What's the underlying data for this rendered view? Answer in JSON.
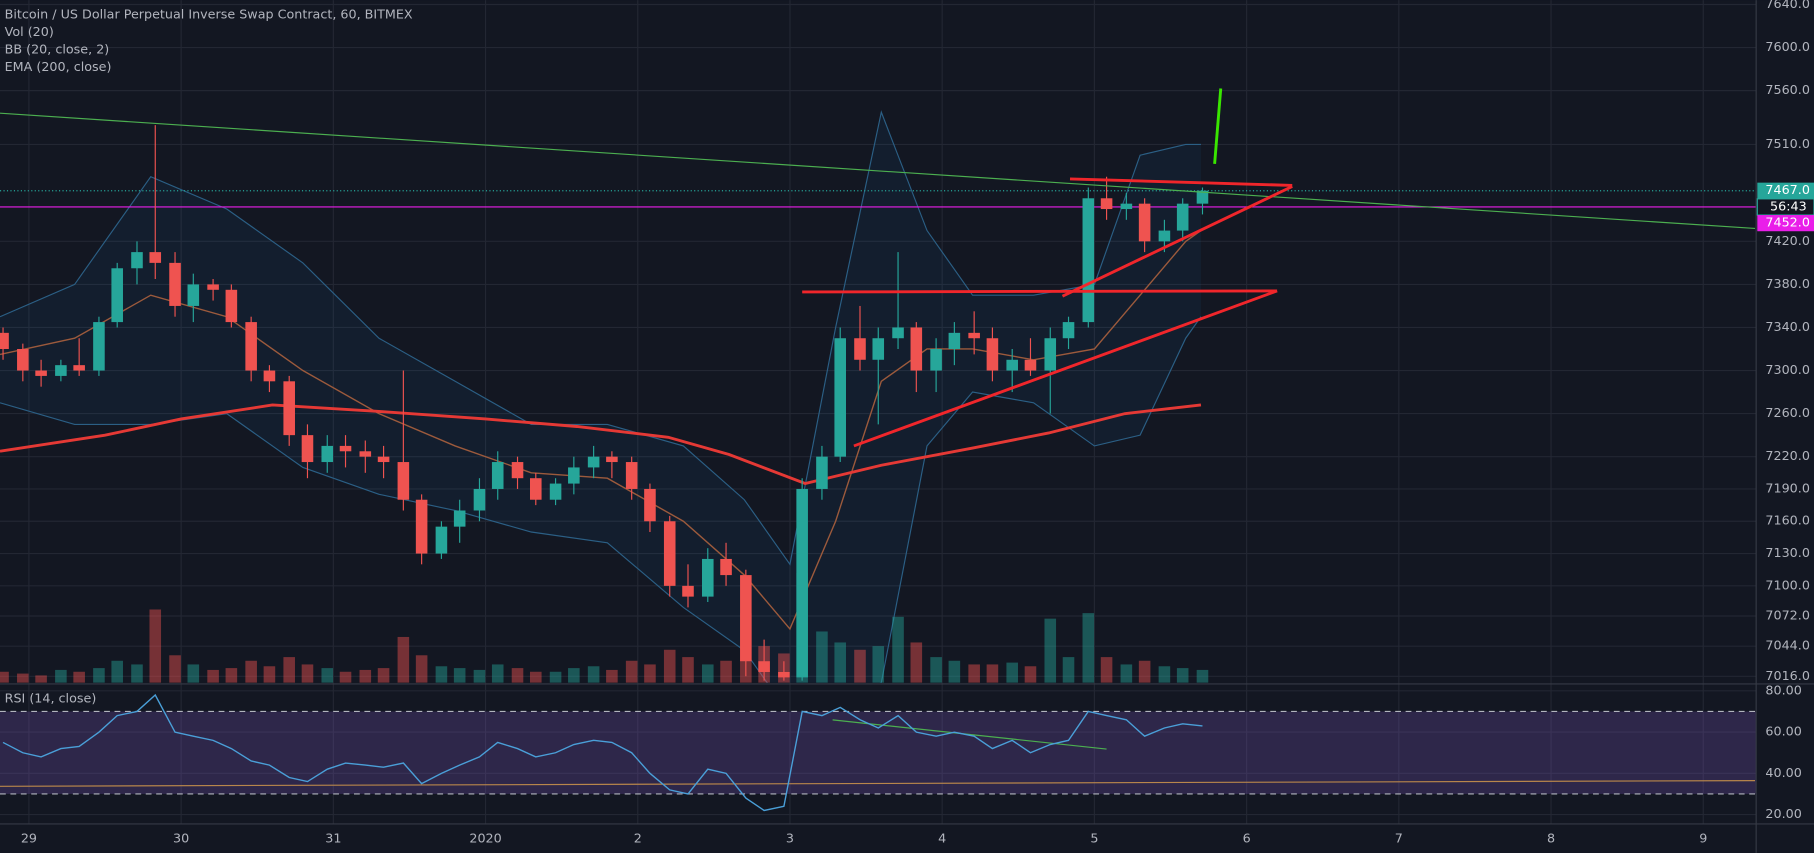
{
  "chart_data": {
    "type": "candlestick",
    "title": "Bitcoin / US Dollar Perpetual Inverse Swap Contract, 60, BITMEX",
    "indicators": [
      "Vol (20)",
      "BB (20, close, 2)",
      "EMA (200, close)"
    ],
    "x": [
      -0.17,
      -0.04,
      0.08,
      0.21,
      0.33,
      0.46,
      0.58,
      0.71,
      0.83,
      0.96,
      1.08,
      1.21,
      1.33,
      1.46,
      1.58,
      1.71,
      1.83,
      1.96,
      2.08,
      2.21,
      2.33,
      2.46,
      2.58,
      2.71,
      2.83,
      2.96,
      3.08,
      3.21,
      3.33,
      3.46,
      3.58,
      3.71,
      3.83,
      3.96,
      4.08,
      4.21,
      4.33,
      4.46,
      4.58,
      4.71,
      4.83,
      4.96,
      5.08,
      5.21,
      5.33,
      5.46,
      5.58,
      5.71,
      5.83,
      5.96,
      6.08,
      6.21,
      6.33,
      6.46,
      6.58,
      6.71,
      6.83,
      6.96,
      7.08,
      7.21,
      7.33,
      7.46,
      7.58,
      7.71
    ],
    "open": [
      7335,
      7320,
      7300,
      7295,
      7305,
      7300,
      7345,
      7395,
      7410,
      7400,
      7360,
      7380,
      7375,
      7345,
      7300,
      7290,
      7240,
      7215,
      7230,
      7225,
      7220,
      7215,
      7180,
      7130,
      7155,
      7170,
      7190,
      7215,
      7200,
      7180,
      7195,
      7210,
      7220,
      7215,
      7190,
      7160,
      7100,
      7090,
      7125,
      7110,
      7030,
      7020,
      7015,
      7190,
      7220,
      7330,
      7310,
      7330,
      7340,
      7300,
      7320,
      7335,
      7330,
      7300,
      7310,
      7300,
      7330,
      7345,
      7460,
      7450,
      7455,
      7420,
      7430,
      7455
    ],
    "high": [
      7340,
      7325,
      7310,
      7310,
      7330,
      7350,
      7400,
      7420,
      7528,
      7410,
      7390,
      7385,
      7380,
      7350,
      7305,
      7295,
      7250,
      7240,
      7240,
      7235,
      7230,
      7300,
      7185,
      7160,
      7180,
      7200,
      7225,
      7220,
      7205,
      7200,
      7220,
      7230,
      7225,
      7220,
      7195,
      7165,
      7120,
      7135,
      7140,
      7115,
      7050,
      7030,
      7200,
      7230,
      7340,
      7360,
      7340,
      7410,
      7345,
      7330,
      7345,
      7355,
      7340,
      7320,
      7330,
      7340,
      7350,
      7470,
      7480,
      7465,
      7460,
      7440,
      7460,
      7470
    ],
    "low": [
      7310,
      7290,
      7285,
      7290,
      7295,
      7295,
      7340,
      7380,
      7385,
      7350,
      7345,
      7365,
      7340,
      7290,
      7280,
      7230,
      7200,
      7205,
      7210,
      7205,
      7200,
      7170,
      7120,
      7125,
      7140,
      7160,
      7180,
      7190,
      7175,
      7175,
      7185,
      7200,
      7200,
      7180,
      7150,
      7090,
      7080,
      7085,
      7100,
      7016,
      7012,
      7012,
      7012,
      7180,
      7215,
      7300,
      7250,
      7320,
      7280,
      7280,
      7305,
      7315,
      7290,
      7280,
      7295,
      7260,
      7320,
      7340,
      7440,
      7440,
      7410,
      7410,
      7420,
      7445
    ],
    "close": [
      7320,
      7300,
      7295,
      7305,
      7300,
      7345,
      7395,
      7410,
      7400,
      7360,
      7380,
      7375,
      7345,
      7300,
      7290,
      7240,
      7215,
      7230,
      7225,
      7220,
      7215,
      7180,
      7130,
      7155,
      7170,
      7190,
      7215,
      7200,
      7180,
      7195,
      7210,
      7220,
      7215,
      7190,
      7160,
      7100,
      7090,
      7125,
      7110,
      7030,
      7020,
      7015,
      7190,
      7220,
      7330,
      7310,
      7330,
      7340,
      7300,
      7320,
      7335,
      7330,
      7300,
      7310,
      7300,
      7330,
      7345,
      7460,
      7450,
      7455,
      7420,
      7430,
      7455,
      7467
    ],
    "volume": [
      6,
      5,
      4,
      7,
      6,
      8,
      12,
      10,
      40,
      15,
      10,
      7,
      8,
      12,
      9,
      14,
      10,
      8,
      6,
      7,
      8,
      25,
      15,
      9,
      8,
      7,
      10,
      8,
      6,
      6,
      8,
      9,
      7,
      12,
      10,
      18,
      14,
      10,
      12,
      38,
      20,
      16,
      60,
      28,
      22,
      18,
      20,
      36,
      22,
      14,
      12,
      10,
      10,
      11,
      9,
      35,
      14,
      38,
      14,
      10,
      12,
      9,
      8,
      7
    ],
    "up_color": "#26a69a",
    "down_color": "#ef5350",
    "xlim": [
      -0.19,
      11.34
    ],
    "xticks": [
      {
        "value": 0,
        "label": "29"
      },
      {
        "value": 1,
        "label": "30"
      },
      {
        "value": 2,
        "label": "31"
      },
      {
        "value": 3,
        "label": "2020"
      },
      {
        "value": 4,
        "label": "2"
      },
      {
        "value": 5,
        "label": "3"
      },
      {
        "value": 6,
        "label": "4"
      },
      {
        "value": 7,
        "label": "5"
      },
      {
        "value": 8,
        "label": "6"
      },
      {
        "value": 9,
        "label": "7"
      },
      {
        "value": 10,
        "label": "8"
      },
      {
        "value": 11,
        "label": "9"
      }
    ],
    "ylim": [
      7010,
      7644
    ],
    "yticks": [
      {
        "value": 7640,
        "label": "7640.0"
      },
      {
        "value": 7600,
        "label": "7600.0"
      },
      {
        "value": 7560,
        "label": "7560.0"
      },
      {
        "value": 7510,
        "label": "7510.0"
      },
      {
        "value": 7420,
        "label": "7420.0"
      },
      {
        "value": 7380,
        "label": "7380.0"
      },
      {
        "value": 7340,
        "label": "7340.0"
      },
      {
        "value": 7300,
        "label": "7300.0"
      },
      {
        "value": 7260,
        "label": "7260.0"
      },
      {
        "value": 7220,
        "label": "7220.0"
      },
      {
        "value": 7190,
        "label": "7190.0"
      },
      {
        "value": 7160,
        "label": "7160.0"
      },
      {
        "value": 7130,
        "label": "7130.0"
      },
      {
        "value": 7100,
        "label": "7100.0"
      },
      {
        "value": 7072,
        "label": "7072.0"
      },
      {
        "value": 7044,
        "label": "7044.0"
      },
      {
        "value": 7016,
        "label": "7016.0"
      }
    ],
    "grid": true,
    "last_price": {
      "value": 7467,
      "label": "7467.0",
      "color": "#26a69a"
    },
    "countdown": "56:43",
    "price_line": {
      "value": 7452,
      "label": "7452.0",
      "color": "#e91ee9"
    },
    "ema": {
      "color": "#e53935",
      "x": [
        -0.19,
        0.5,
        1.0,
        1.6,
        2.3,
        3.0,
        3.6,
        4.2,
        4.6,
        5.1,
        5.6,
        6.2,
        6.7,
        7.2,
        7.7
      ],
      "values": [
        7225,
        7240,
        7255,
        7268,
        7262,
        7255,
        7248,
        7238,
        7222,
        7195,
        7212,
        7228,
        7242,
        7260,
        7268
      ]
    },
    "bb": {
      "color": "#2b5f85",
      "middle_color": "#9c5a3c",
      "x": [
        -0.19,
        0.3,
        0.8,
        1.3,
        1.8,
        2.3,
        2.8,
        3.3,
        3.8,
        4.3,
        4.7,
        5.0,
        5.3,
        5.6,
        5.9,
        6.2,
        6.6,
        7.0,
        7.3,
        7.6,
        7.7
      ],
      "upper": [
        7350,
        7380,
        7480,
        7450,
        7400,
        7330,
        7290,
        7250,
        7250,
        7230,
        7180,
        7120,
        7340,
        7540,
        7430,
        7370,
        7370,
        7380,
        7500,
        7510,
        7510
      ],
      "middle": [
        7315,
        7330,
        7370,
        7350,
        7300,
        7260,
        7230,
        7205,
        7200,
        7160,
        7110,
        7060,
        7160,
        7290,
        7320,
        7320,
        7310,
        7320,
        7370,
        7420,
        7430
      ],
      "lower": [
        7270,
        7250,
        7250,
        7260,
        7210,
        7185,
        7170,
        7150,
        7140,
        7080,
        7040,
        6980,
        6990,
        7010,
        7230,
        7280,
        7270,
        7230,
        7240,
        7330,
        7350
      ]
    },
    "drawings": [
      {
        "color": "#4caf50",
        "x": [
          -0.19,
          11.34
        ],
        "y": [
          7539,
          7432
        ]
      },
      {
        "color": "#39e600",
        "x": [
          7.79,
          7.83
        ],
        "y": [
          7492,
          7562
        ]
      },
      {
        "color": "#f0262b",
        "x": [
          6.84,
          8.3
        ],
        "y": [
          7478,
          7472
        ]
      },
      {
        "color": "#f0262b",
        "x": [
          8.3,
          6.79
        ],
        "y": [
          7471,
          7369
        ]
      },
      {
        "color": "#f0262b",
        "x": [
          5.08,
          8.2
        ],
        "y": [
          7373,
          7374
        ]
      },
      {
        "color": "#f0262b",
        "x": [
          8.2,
          5.42
        ],
        "y": [
          7374,
          7230
        ]
      }
    ],
    "rsi": {
      "title": "RSI (14, close)",
      "color": "#4a9fd8",
      "values": [
        55,
        50,
        48,
        52,
        53,
        60,
        68,
        70,
        78,
        60,
        58,
        56,
        52,
        46,
        44,
        38,
        36,
        42,
        45,
        44,
        43,
        45,
        35,
        40,
        44,
        48,
        55,
        52,
        48,
        50,
        54,
        56,
        55,
        50,
        40,
        32,
        30,
        42,
        40,
        28,
        22,
        24,
        70,
        68,
        72,
        66,
        62,
        68,
        60,
        58,
        60,
        58,
        52,
        56,
        50,
        54,
        56,
        70,
        68,
        66,
        58,
        62,
        64,
        63
      ],
      "ylim": [
        15.5,
        82.8
      ],
      "yticks": [
        {
          "value": 80,
          "label": "80.00"
        },
        {
          "value": 60,
          "label": "60.00"
        },
        {
          "value": 40,
          "label": "40.00"
        },
        {
          "value": 20,
          "label": "20.00"
        }
      ],
      "levels": [
        70,
        30
      ],
      "drawings": [
        {
          "color": "#4caf50",
          "x": [
            5.28,
            7.08
          ],
          "y": [
            65.9,
            51.8
          ]
        },
        {
          "color": "#b8864b",
          "x": [
            -0.19,
            11.34
          ],
          "y": [
            33.7,
            36.5
          ]
        }
      ]
    }
  }
}
